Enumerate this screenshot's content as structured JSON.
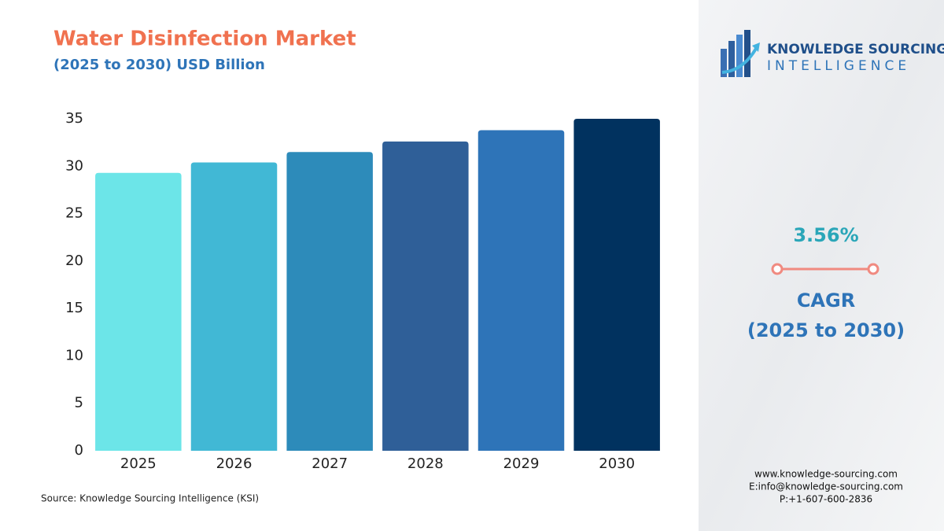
{
  "chart_data": {
    "type": "bar",
    "title": "Water Disinfection Market",
    "subtitle": "(2025 to 2030) USD Billion",
    "categories": [
      "2025",
      "2026",
      "2027",
      "2028",
      "2029",
      "2030"
    ],
    "values": [
      29.3,
      30.4,
      31.5,
      32.6,
      33.8,
      35.0
    ],
    "colors": [
      "#6ce5e8",
      "#41b8d5",
      "#2d8bba",
      "#2f5f98",
      "#2e74b8",
      "#01325f"
    ],
    "ylim": [
      0,
      35
    ],
    "yticks": [
      0,
      5,
      10,
      15,
      20,
      25,
      30,
      35
    ],
    "grid": false
  },
  "source": "Source: Knowledge Sourcing Intelligence (KSI)",
  "sidebar": {
    "logo_line1": "KNOWLEDGE SOURCING",
    "logo_line2": "INTELLIGENCE",
    "cagr_value": "3.56%",
    "cagr_label": "CAGR",
    "cagr_period": "(2025 to 2030)",
    "contact": [
      "www.knowledge-sourcing.com",
      "E:info@knowledge-sourcing.com",
      "P:+1-607-600-2836"
    ]
  }
}
